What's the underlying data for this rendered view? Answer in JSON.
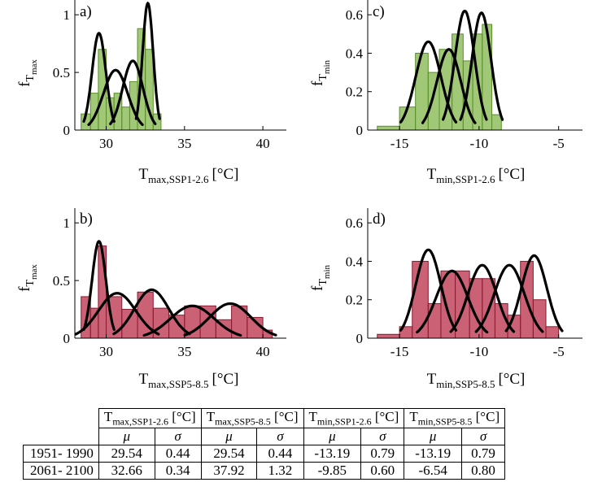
{
  "colors": {
    "green_fill": "#7cb342",
    "green_edge": "#5a8f2a",
    "red_fill": "#b5243f",
    "red_edge": "#8a1a30",
    "curve": "#000000"
  },
  "panels": {
    "a": {
      "label": "a)",
      "ylabel_main": "f",
      "ylabel_sub": "T",
      "ylabel_subsub": "max",
      "xlabel_main": "T",
      "xlabel_sub": "max,SSP1-2.6",
      "xlabel_unit": "[°C]"
    },
    "b": {
      "label": "b)",
      "ylabel_main": "f",
      "ylabel_sub": "T",
      "ylabel_subsub": "max",
      "xlabel_main": "T",
      "xlabel_sub": "max,SSP5-8.5",
      "xlabel_unit": "[°C]"
    },
    "c": {
      "label": "c)",
      "ylabel_main": "f",
      "ylabel_sub": "T",
      "ylabel_subsub": "min",
      "xlabel_main": "T",
      "xlabel_sub": "min,SSP1-2.6",
      "xlabel_unit": "[°C]"
    },
    "d": {
      "label": "d)",
      "ylabel_main": "f",
      "ylabel_sub": "T",
      "ylabel_subsub": "min",
      "xlabel_main": "T",
      "xlabel_sub": "min,SSP5-8.5",
      "xlabel_unit": "[°C]"
    }
  },
  "chart_data": [
    {
      "id": "a",
      "type": "bar",
      "xlim": [
        28,
        41.5
      ],
      "ylim": [
        0,
        1.1
      ],
      "xticks": [
        30,
        35,
        40
      ],
      "xtick_labels": [
        "30",
        "35",
        "40"
      ],
      "yticks": [
        0,
        0.5,
        1
      ],
      "ytick_labels": [
        "0",
        "0.5",
        "1"
      ],
      "fill": "green",
      "bars": [
        [
          28.4,
          29.0,
          0.14
        ],
        [
          29.0,
          29.5,
          0.32
        ],
        [
          29.5,
          30.0,
          0.7
        ],
        [
          30.0,
          30.5,
          0.28
        ],
        [
          30.5,
          31.0,
          0.32
        ],
        [
          31.0,
          31.5,
          0.2
        ],
        [
          31.5,
          32.0,
          0.42
        ],
        [
          32.0,
          32.5,
          0.88
        ],
        [
          32.5,
          33.0,
          0.7
        ],
        [
          33.0,
          33.5,
          0.14
        ]
      ],
      "curves": [
        {
          "mu": 29.54,
          "sigma": 0.44,
          "peak": 0.84
        },
        {
          "mu": 30.6,
          "sigma": 0.78,
          "peak": 0.52
        },
        {
          "mu": 31.7,
          "sigma": 0.65,
          "peak": 0.6
        },
        {
          "mu": 32.66,
          "sigma": 0.34,
          "peak": 1.1
        }
      ]
    },
    {
      "id": "b",
      "type": "bar",
      "xlim": [
        28,
        41.5
      ],
      "ylim": [
        0,
        1.1
      ],
      "xticks": [
        30,
        35,
        40
      ],
      "xtick_labels": [
        "30",
        "35",
        "40"
      ],
      "yticks": [
        0,
        0.5,
        1
      ],
      "ytick_labels": [
        "0",
        "0.5",
        "1"
      ],
      "fill": "red",
      "bars": [
        [
          28.4,
          29.0,
          0.36
        ],
        [
          29.0,
          29.5,
          0.26
        ],
        [
          29.5,
          30.0,
          0.8
        ],
        [
          30.0,
          31.0,
          0.36
        ],
        [
          31.0,
          32.0,
          0.25
        ],
        [
          32.0,
          33.0,
          0.4
        ],
        [
          33.0,
          34.0,
          0.26
        ],
        [
          34.0,
          35.0,
          0.2
        ],
        [
          35.0,
          36.0,
          0.28
        ],
        [
          36.0,
          37.0,
          0.28
        ],
        [
          37.0,
          38.0,
          0.16
        ],
        [
          38.0,
          39.0,
          0.28
        ],
        [
          39.0,
          40.0,
          0.18
        ],
        [
          40.0,
          40.6,
          0.07
        ]
      ],
      "curves": [
        {
          "mu": 29.54,
          "sigma": 0.44,
          "peak": 0.84
        },
        {
          "mu": 30.7,
          "sigma": 1.2,
          "peak": 0.39
        },
        {
          "mu": 32.9,
          "sigma": 1.1,
          "peak": 0.42
        },
        {
          "mu": 35.5,
          "sigma": 1.4,
          "peak": 0.28
        },
        {
          "mu": 37.92,
          "sigma": 1.32,
          "peak": 0.3
        }
      ]
    },
    {
      "id": "c",
      "type": "bar",
      "xlim": [
        -17,
        -3.5
      ],
      "ylim": [
        0,
        0.66
      ],
      "xticks": [
        -15,
        -10,
        -5
      ],
      "xtick_labels": [
        "-15",
        "-10",
        "-5"
      ],
      "yticks": [
        0,
        0.2,
        0.4,
        0.6
      ],
      "ytick_labels": [
        "0",
        "0.2",
        "0.4",
        "0.6"
      ],
      "fill": "green",
      "bars": [
        [
          -16.4,
          -15.0,
          0.02
        ],
        [
          -15.0,
          -14.0,
          0.12
        ],
        [
          -14.0,
          -13.2,
          0.4
        ],
        [
          -13.2,
          -12.5,
          0.3
        ],
        [
          -12.5,
          -11.7,
          0.42
        ],
        [
          -11.7,
          -11.0,
          0.5
        ],
        [
          -11.0,
          -10.4,
          0.36
        ],
        [
          -10.4,
          -9.8,
          0.5
        ],
        [
          -9.8,
          -9.2,
          0.55
        ],
        [
          -9.2,
          -8.6,
          0.08
        ]
      ],
      "curves": [
        {
          "mu": -13.19,
          "sigma": 0.79,
          "peak": 0.46
        },
        {
          "mu": -11.9,
          "sigma": 0.75,
          "peak": 0.42
        },
        {
          "mu": -10.9,
          "sigma": 0.62,
          "peak": 0.62
        },
        {
          "mu": -9.85,
          "sigma": 0.6,
          "peak": 0.61
        }
      ]
    },
    {
      "id": "d",
      "type": "bar",
      "xlim": [
        -17,
        -3.5
      ],
      "ylim": [
        0,
        0.66
      ],
      "xticks": [
        -15,
        -10,
        -5
      ],
      "xtick_labels": [
        "-15",
        "-10",
        "-5"
      ],
      "yticks": [
        0,
        0.2,
        0.4,
        0.6
      ],
      "ytick_labels": [
        "0",
        "0.2",
        "0.4",
        "0.6"
      ],
      "fill": "red",
      "bars": [
        [
          -16.4,
          -15.0,
          0.02
        ],
        [
          -15.0,
          -14.2,
          0.06
        ],
        [
          -14.2,
          -13.2,
          0.4
        ],
        [
          -13.2,
          -12.4,
          0.18
        ],
        [
          -12.4,
          -11.5,
          0.35
        ],
        [
          -11.5,
          -10.6,
          0.35
        ],
        [
          -10.6,
          -9.8,
          0.31
        ],
        [
          -9.8,
          -9.0,
          0.31
        ],
        [
          -9.0,
          -8.2,
          0.18
        ],
        [
          -8.2,
          -7.4,
          0.12
        ],
        [
          -7.4,
          -6.6,
          0.4
        ],
        [
          -6.6,
          -5.8,
          0.2
        ],
        [
          -5.8,
          -5.0,
          0.06
        ]
      ],
      "curves": [
        {
          "mu": -13.19,
          "sigma": 0.79,
          "peak": 0.46
        },
        {
          "mu": -11.7,
          "sigma": 1.0,
          "peak": 0.35
        },
        {
          "mu": -9.8,
          "sigma": 0.9,
          "peak": 0.38
        },
        {
          "mu": -8.1,
          "sigma": 0.95,
          "peak": 0.38
        },
        {
          "mu": -6.54,
          "sigma": 0.8,
          "peak": 0.43
        }
      ]
    }
  ],
  "table": {
    "header_groups": [
      {
        "main": "T",
        "sub": "max,SSP1-2.6",
        "unit": "[°C]"
      },
      {
        "main": "T",
        "sub": "max,SSP5-8.5",
        "unit": "[°C]"
      },
      {
        "main": "T",
        "sub": "min,SSP1-2.6",
        "unit": "[°C]"
      },
      {
        "main": "T",
        "sub": "min,SSP5-8.5",
        "unit": "[°C]"
      }
    ],
    "mu": "μ",
    "sigma": "σ",
    "rows": [
      {
        "label": "1951- 1990",
        "values": [
          "29.54",
          "0.44",
          "29.54",
          "0.44",
          "-13.19",
          "0.79",
          "-13.19",
          "0.79"
        ]
      },
      {
        "label": "2061- 2100",
        "values": [
          "32.66",
          "0.34",
          "37.92",
          "1.32",
          "-9.85",
          "0.60",
          "-6.54",
          "0.80"
        ]
      }
    ]
  }
}
